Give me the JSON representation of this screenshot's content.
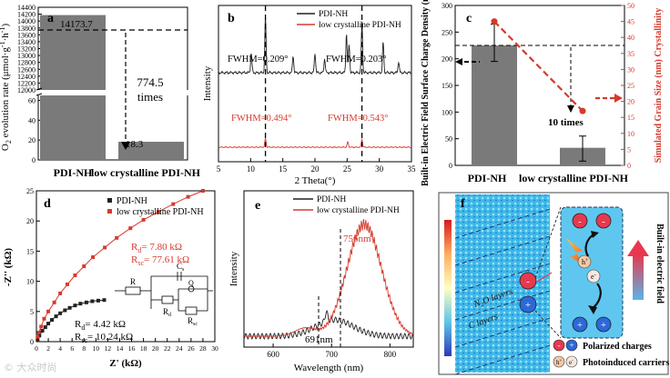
{
  "chart_data": [
    {
      "panel": "a",
      "type": "bar",
      "categories": [
        "PDI-NH",
        "low crystalline PDI-NH"
      ],
      "values": [
        14173.7,
        18.3
      ],
      "value_labels": [
        "14173.7",
        "18.3"
      ],
      "ylabel_pre": "O",
      "ylabel_sub": "2",
      "ylabel_post": " evolution rate (μmol·g",
      "ylabel_sup": "-1",
      "ylabel_post2": "·h",
      "ylabel_sup2": "-1",
      "ylabel_end": ")",
      "upper_ticks": [
        12000,
        12200,
        12400,
        12600,
        12800,
        13000,
        13200,
        13400,
        13600,
        13800,
        14000,
        14200,
        14400
      ],
      "lower_ticks": [
        0,
        20,
        40,
        60
      ],
      "ylim_upper": [
        12000,
        14400
      ],
      "ylim_lower": [
        0,
        65
      ],
      "annotation_value": "774.5",
      "annotation_text": "times",
      "color": "#7a7a7a"
    },
    {
      "panel": "b",
      "type": "line",
      "title": "",
      "xlabel": "2 Theta(°)",
      "ylabel": "Intensity",
      "xlim": [
        5,
        35
      ],
      "x_ticks": [
        5,
        10,
        15,
        20,
        25,
        30,
        35
      ],
      "series": [
        {
          "name": "PDI-NH",
          "color": "#222222",
          "peaks": [
            [
              10.1,
              0.35
            ],
            [
              12.3,
              1.0
            ],
            [
              16.6,
              0.3
            ],
            [
              20.0,
              0.35
            ],
            [
              21.5,
              0.25
            ],
            [
              24.9,
              0.7
            ],
            [
              25.3,
              0.5
            ],
            [
              27.3,
              0.9
            ],
            [
              30.6,
              0.55
            ],
            [
              33.0,
              0.2
            ]
          ]
        },
        {
          "name": "low crystalline PDI-NH",
          "color": "#d63a2c",
          "peaks": [
            [
              12.3,
              0.4
            ],
            [
              25.1,
              0.25
            ],
            [
              27.3,
              0.35
            ]
          ]
        }
      ],
      "annotations": [
        "FWHM=0.209°",
        "FWHM=0.203°",
        "FWHM=0.494°",
        "FWHM=0.543°"
      ],
      "dashed_lines_x": [
        12.3,
        27.3
      ]
    },
    {
      "panel": "c",
      "type": "bar",
      "categories": [
        "PDI-NH",
        "low crystalline PDI-NH"
      ],
      "bar_values": [
        225,
        33
      ],
      "bar_errors": [
        [
          195,
          265
        ],
        [
          8,
          55
        ]
      ],
      "line_values": [
        45,
        17
      ],
      "ylabel_left": "Built-in Electric Field Surface Charge Density (mV)",
      "ylabel_right": "Simulated Grain Size (nm) Crystallinity",
      "ylim_left": [
        0,
        300
      ],
      "ylim_right": [
        0,
        50
      ],
      "left_ticks": [
        0,
        50,
        100,
        150,
        200,
        250,
        300
      ],
      "right_ticks": [
        0,
        5,
        10,
        15,
        20,
        25,
        30,
        35,
        40,
        45,
        50
      ],
      "annotation": "10 times",
      "line_color": "#d63a2c"
    },
    {
      "panel": "d",
      "type": "scatter",
      "xlabel": "Z' (kΩ)",
      "ylabel": "-Z'' (kΩ)",
      "xlim": [
        0,
        30
      ],
      "ylim": [
        0,
        25
      ],
      "x_ticks": [
        0,
        2,
        4,
        6,
        8,
        10,
        12,
        14,
        16,
        18,
        20,
        22,
        24,
        26,
        28,
        30
      ],
      "y_ticks": [
        0,
        5,
        10,
        15,
        20,
        25
      ],
      "series": [
        {
          "name": "PDI-NH",
          "color": "#222222",
          "marker": "square",
          "x": [
            0.2,
            0.5,
            1.0,
            1.5,
            2.0,
            2.6,
            3.3,
            4.0,
            4.8,
            5.6,
            6.5,
            7.4,
            8.4,
            9.4,
            10.4,
            11.4
          ],
          "y": [
            0.4,
            1.0,
            1.8,
            2.4,
            3.0,
            3.6,
            4.2,
            4.7,
            5.2,
            5.6,
            6.0,
            6.3,
            6.5,
            6.7,
            6.8,
            6.9
          ]
        },
        {
          "name": "low crystalline PDI-NH",
          "color": "#d63a2c",
          "marker": "square",
          "x": [
            0.2,
            0.4,
            0.8,
            1.3,
            2.0,
            3.0,
            4.0,
            5.2,
            6.5,
            8.0,
            9.5,
            11.5,
            13.5,
            15.8,
            18.0,
            20.5,
            23.0,
            25.5,
            28.0
          ],
          "y": [
            0.8,
            1.5,
            2.5,
            3.8,
            5.0,
            6.5,
            8.0,
            9.5,
            11.0,
            12.5,
            14.0,
            15.6,
            17.2,
            18.8,
            20.2,
            21.5,
            22.8,
            24.0,
            25.0
          ]
        }
      ],
      "fit_red": {
        "Rd": "7.80 kΩ",
        "Rsc": "77.61 kΩ"
      },
      "fit_black": {
        "Rd": "4.42 kΩ",
        "Rsc": "10.24 kΩ"
      },
      "circuit_labels": [
        "R",
        "C",
        "R",
        "Q",
        "R"
      ],
      "circuit_subs": [
        "",
        "",
        "d",
        "",
        "sc"
      ]
    },
    {
      "panel": "e",
      "type": "line",
      "xlabel": "Wavelength (nm)",
      "ylabel": "Intensity",
      "xlim": [
        550,
        840
      ],
      "x_ticks": [
        600,
        700,
        800
      ],
      "series": [
        {
          "name": "PDI-NH",
          "color": "#222222",
          "peak_nm": 691
        },
        {
          "name": "low crystalline PDI-NH",
          "color": "#d63a2c",
          "peak_nm": 756
        }
      ],
      "annotations": [
        "756nm",
        "691nm"
      ]
    }
  ],
  "panels": {
    "a": "a",
    "b": "b",
    "c": "c",
    "d": "d",
    "e": "e",
    "f": "f"
  },
  "schematic": {
    "layer_top_pre": "N",
    "layer_top_sub": "2",
    "layer_top_post": "O layers",
    "layer_bottom": "C layers",
    "vertical_label": "Built-in electric field",
    "legend_polarized": "Polarized charges",
    "legend_photo": "Photoinduced carriers",
    "charge_minus": "-",
    "charge_plus": "+",
    "hole": "h",
    "hole_sup": "+",
    "electron": "e",
    "electron_sup": "-"
  },
  "watermark": "© 大众时尚"
}
